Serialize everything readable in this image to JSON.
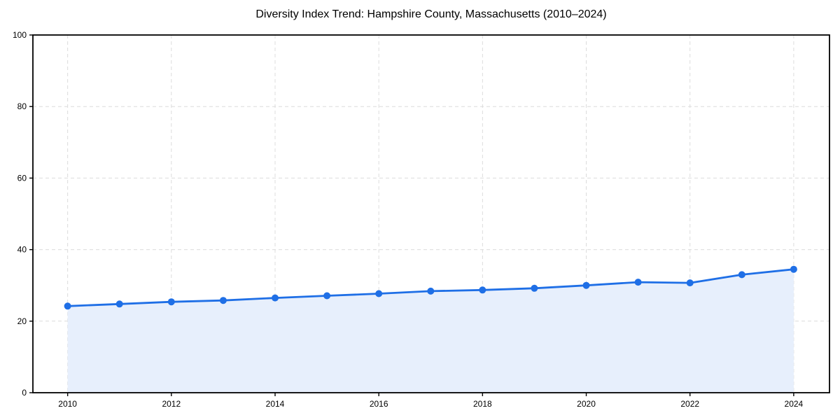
{
  "chart_data": {
    "type": "line",
    "title": "Diversity Index Trend: Hampshire County, Massachusetts (2010–2024)",
    "xlabel": "",
    "ylabel": "",
    "x": [
      2010,
      2011,
      2012,
      2013,
      2014,
      2015,
      2016,
      2017,
      2018,
      2019,
      2020,
      2021,
      2022,
      2023,
      2024
    ],
    "series": [
      {
        "name": "Diversity Index",
        "values": [
          24.2,
          24.8,
          25.4,
          25.8,
          26.5,
          27.1,
          27.7,
          28.4,
          28.7,
          29.2,
          30.0,
          30.9,
          30.7,
          33.0,
          34.5
        ]
      }
    ],
    "xlim": [
      2009.33,
      2024.69
    ],
    "ylim": [
      0,
      100
    ],
    "xticks": [
      2010,
      2012,
      2014,
      2016,
      2018,
      2020,
      2022,
      2024
    ],
    "yticks": [
      0,
      20,
      40,
      60,
      80,
      100
    ],
    "grid": true,
    "grid_style": "dashed",
    "legend": false,
    "area_fill": true,
    "markers": true,
    "style": {
      "line_color": "#1f6fe6",
      "marker_color": "#1f6fe6",
      "fill_color": "#e7effc",
      "grid_color": "#dcdcdc",
      "axis_color": "#000000",
      "text_color": "#000000",
      "background": "#ffffff"
    }
  }
}
